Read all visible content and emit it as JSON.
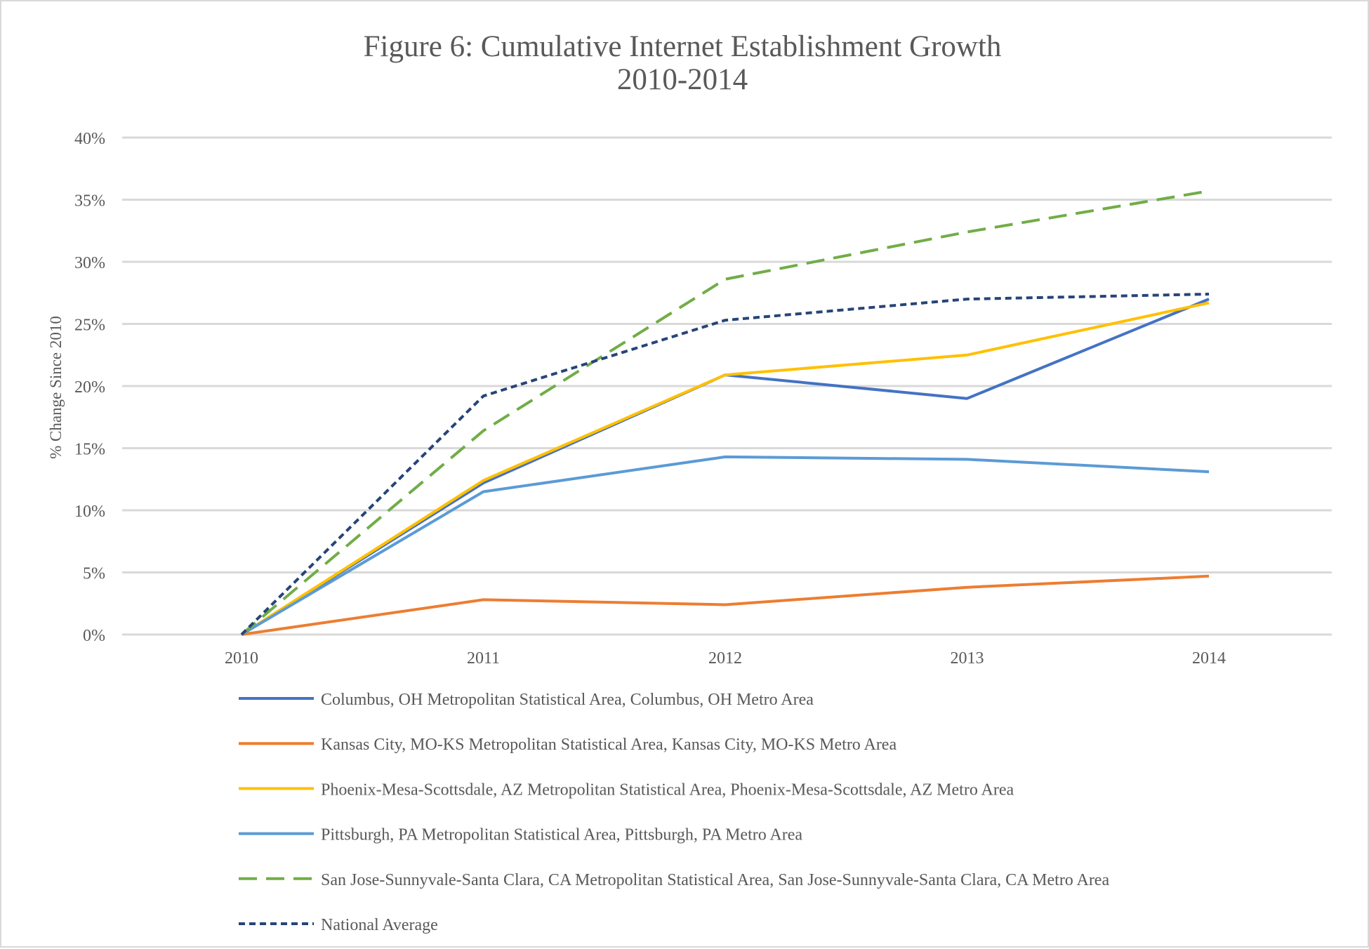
{
  "chart_data": {
    "type": "line",
    "title": "Figure 6: Cumulative Internet Establishment Growth",
    "subtitle": "2010-2014",
    "xlabel": "",
    "ylabel": "% Change Since 2010",
    "categories": [
      "2010",
      "2011",
      "2012",
      "2013",
      "2014"
    ],
    "ylim": [
      0,
      40
    ],
    "yticks": [
      0,
      5,
      10,
      15,
      20,
      25,
      30,
      35,
      40
    ],
    "ytick_labels": [
      "0%",
      "5%",
      "10%",
      "15%",
      "20%",
      "25%",
      "30%",
      "35%",
      "40%"
    ],
    "grid": "horizontal",
    "legend_position": "bottom",
    "series": [
      {
        "name": "Columbus, OH Metropolitan Statistical Area, Columbus, OH Metro Area",
        "values": [
          0,
          12.2,
          20.9,
          19.0,
          27.0
        ],
        "color": "#4472c4",
        "dash": "solid"
      },
      {
        "name": "Kansas City, MO-KS Metropolitan Statistical Area, Kansas City, MO-KS Metro Area",
        "values": [
          0,
          2.8,
          2.4,
          3.8,
          4.7
        ],
        "color": "#ed7d31",
        "dash": "solid"
      },
      {
        "name": "Phoenix-Mesa-Scottsdale, AZ Metropolitan Statistical Area, Phoenix-Mesa-Scottsdale, AZ Metro Area",
        "values": [
          0,
          12.4,
          20.9,
          22.5,
          26.7
        ],
        "color": "#ffc000",
        "dash": "solid"
      },
      {
        "name": "Pittsburgh, PA Metropolitan Statistical Area, Pittsburgh, PA Metro Area",
        "values": [
          0,
          11.5,
          14.3,
          14.1,
          13.1
        ],
        "color": "#5b9bd5",
        "dash": "solid"
      },
      {
        "name": "San Jose-Sunnyvale-Santa Clara, CA Metropolitan Statistical Area, San Jose-Sunnyvale-Santa Clara, CA Metro Area",
        "values": [
          0,
          16.4,
          28.6,
          32.4,
          35.7
        ],
        "color": "#70ad47",
        "dash": "long-dash"
      },
      {
        "name": "National Average",
        "values": [
          0,
          19.2,
          25.3,
          27.0,
          27.4
        ],
        "color": "#264478",
        "dash": "short-dash"
      }
    ]
  }
}
